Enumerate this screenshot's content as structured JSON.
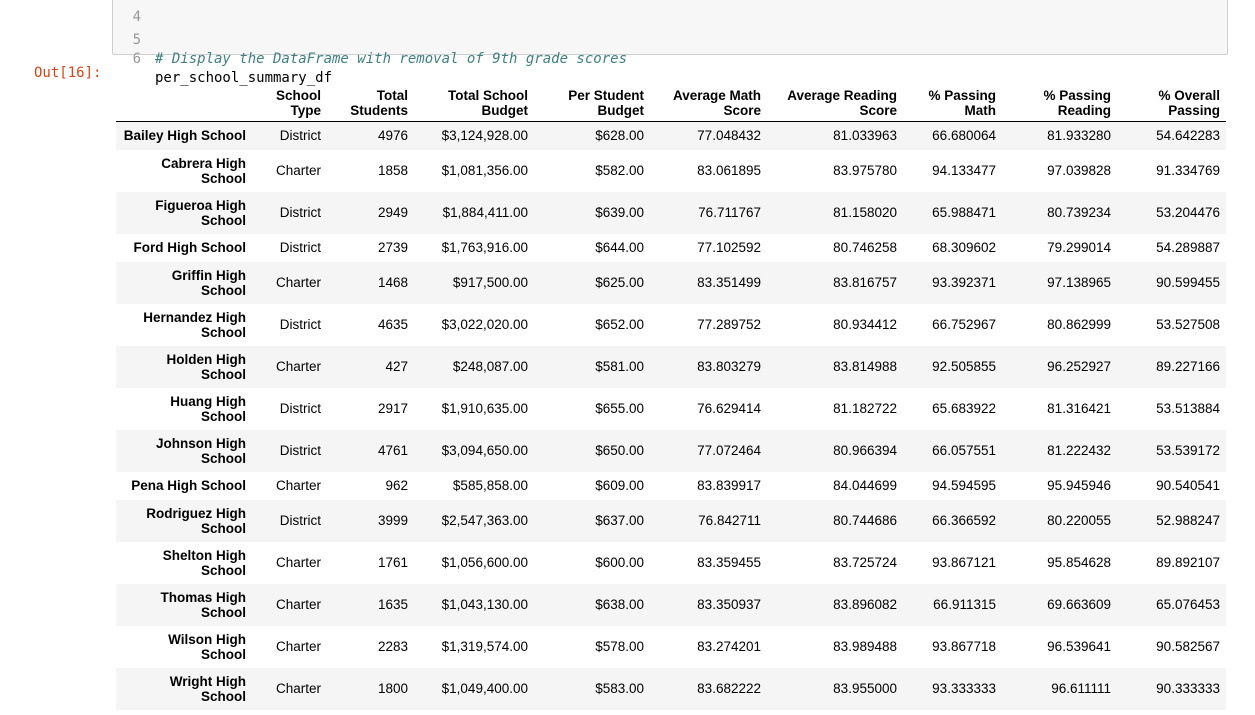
{
  "code": {
    "lines": [
      {
        "num": "4",
        "text": ""
      },
      {
        "num": "5",
        "text": "# Display the DataFrame with removal of 9th grade scores"
      },
      {
        "num": "6",
        "text": "per_school_summary_df"
      }
    ]
  },
  "output": {
    "prompt": "Out[16]:",
    "columns": [
      [
        "",
        ""
      ],
      [
        "School",
        "Type"
      ],
      [
        "Total",
        "Students"
      ],
      [
        "Total School",
        "Budget"
      ],
      [
        "Per Student",
        "Budget"
      ],
      [
        "Average Math",
        "Score"
      ],
      [
        "Average Reading",
        "Score"
      ],
      [
        "% Passing",
        "Math"
      ],
      [
        "% Passing",
        "Reading"
      ],
      [
        "% Overall",
        "Passing"
      ]
    ],
    "rows": [
      {
        "name": [
          "Bailey High School"
        ],
        "cells": [
          "District",
          "4976",
          "$3,124,928.00",
          "$628.00",
          "77.048432",
          "81.033963",
          "66.680064",
          "81.933280",
          "54.642283"
        ]
      },
      {
        "name": [
          "Cabrera High",
          "School"
        ],
        "cells": [
          "Charter",
          "1858",
          "$1,081,356.00",
          "$582.00",
          "83.061895",
          "83.975780",
          "94.133477",
          "97.039828",
          "91.334769"
        ]
      },
      {
        "name": [
          "Figueroa High",
          "School"
        ],
        "cells": [
          "District",
          "2949",
          "$1,884,411.00",
          "$639.00",
          "76.711767",
          "81.158020",
          "65.988471",
          "80.739234",
          "53.204476"
        ]
      },
      {
        "name": [
          "Ford High School"
        ],
        "cells": [
          "District",
          "2739",
          "$1,763,916.00",
          "$644.00",
          "77.102592",
          "80.746258",
          "68.309602",
          "79.299014",
          "54.289887"
        ]
      },
      {
        "name": [
          "Griffin High",
          "School"
        ],
        "cells": [
          "Charter",
          "1468",
          "$917,500.00",
          "$625.00",
          "83.351499",
          "83.816757",
          "93.392371",
          "97.138965",
          "90.599455"
        ]
      },
      {
        "name": [
          "Hernandez High",
          "School"
        ],
        "cells": [
          "District",
          "4635",
          "$3,022,020.00",
          "$652.00",
          "77.289752",
          "80.934412",
          "66.752967",
          "80.862999",
          "53.527508"
        ]
      },
      {
        "name": [
          "Holden High",
          "School"
        ],
        "cells": [
          "Charter",
          "427",
          "$248,087.00",
          "$581.00",
          "83.803279",
          "83.814988",
          "92.505855",
          "96.252927",
          "89.227166"
        ]
      },
      {
        "name": [
          "Huang High",
          "School"
        ],
        "cells": [
          "District",
          "2917",
          "$1,910,635.00",
          "$655.00",
          "76.629414",
          "81.182722",
          "65.683922",
          "81.316421",
          "53.513884"
        ]
      },
      {
        "name": [
          "Johnson High",
          "School"
        ],
        "cells": [
          "District",
          "4761",
          "$3,094,650.00",
          "$650.00",
          "77.072464",
          "80.966394",
          "66.057551",
          "81.222432",
          "53.539172"
        ]
      },
      {
        "name": [
          "Pena High School"
        ],
        "cells": [
          "Charter",
          "962",
          "$585,858.00",
          "$609.00",
          "83.839917",
          "84.044699",
          "94.594595",
          "95.945946",
          "90.540541"
        ]
      },
      {
        "name": [
          "Rodriguez High",
          "School"
        ],
        "cells": [
          "District",
          "3999",
          "$2,547,363.00",
          "$637.00",
          "76.842711",
          "80.744686",
          "66.366592",
          "80.220055",
          "52.988247"
        ]
      },
      {
        "name": [
          "Shelton High",
          "School"
        ],
        "cells": [
          "Charter",
          "1761",
          "$1,056,600.00",
          "$600.00",
          "83.359455",
          "83.725724",
          "93.867121",
          "95.854628",
          "89.892107"
        ]
      },
      {
        "name": [
          "Thomas High",
          "School"
        ],
        "cells": [
          "Charter",
          "1635",
          "$1,043,130.00",
          "$638.00",
          "83.350937",
          "83.896082",
          "66.911315",
          "69.663609",
          "65.076453"
        ]
      },
      {
        "name": [
          "Wilson High",
          "School"
        ],
        "cells": [
          "Charter",
          "2283",
          "$1,319,574.00",
          "$578.00",
          "83.274201",
          "83.989488",
          "93.867718",
          "96.539641",
          "90.582567"
        ]
      },
      {
        "name": [
          "Wright High",
          "School"
        ],
        "cells": [
          "Charter",
          "1800",
          "$1,049,400.00",
          "$583.00",
          "83.682222",
          "83.955000",
          "93.333333",
          "96.611111",
          "90.333333"
        ]
      }
    ]
  }
}
